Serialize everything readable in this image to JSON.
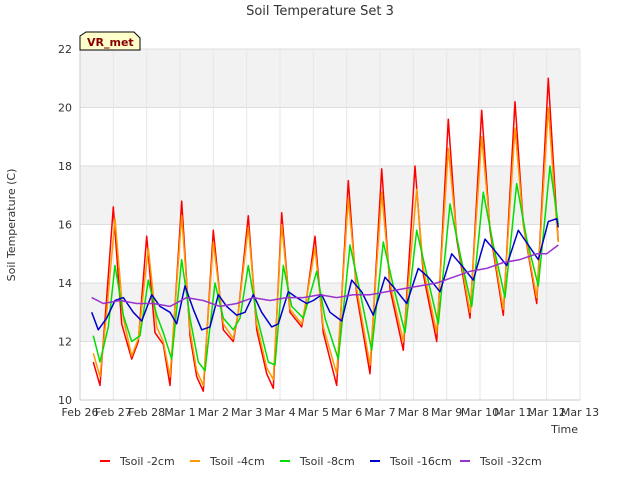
{
  "chart_data": {
    "type": "line",
    "title": "Soil Temperature Set 3",
    "xlabel": "Time",
    "ylabel": "Soil Temperature (C)",
    "ylim": [
      10,
      22
    ],
    "yticks": [
      10,
      12,
      14,
      16,
      18,
      20,
      22
    ],
    "xlim": [
      0,
      15
    ],
    "xticks": [
      {
        "x": 0,
        "label": "Feb 26"
      },
      {
        "x": 1,
        "label": "Feb 27"
      },
      {
        "x": 2,
        "label": "Feb 28"
      },
      {
        "x": 3,
        "label": "Mar 1"
      },
      {
        "x": 4,
        "label": "Mar 2"
      },
      {
        "x": 5,
        "label": "Mar 3"
      },
      {
        "x": 6,
        "label": "Mar 4"
      },
      {
        "x": 7,
        "label": "Mar 5"
      },
      {
        "x": 8,
        "label": "Mar 6"
      },
      {
        "x": 9,
        "label": "Mar 7"
      },
      {
        "x": 10,
        "label": "Mar 8"
      },
      {
        "x": 11,
        "label": "Mar 9"
      },
      {
        "x": 12,
        "label": "Mar 10"
      },
      {
        "x": 13,
        "label": "Mar 11"
      },
      {
        "x": 14,
        "label": "Mar 12"
      },
      {
        "x": 15,
        "label": "Mar 13"
      }
    ],
    "grid": true,
    "banded_background": true,
    "legend_position": "bottom",
    "annotation": "VR_met",
    "series": [
      {
        "name": "Tsoil -2cm",
        "color": "#ff0000",
        "points": [
          [
            0.4,
            11.3
          ],
          [
            0.6,
            10.5
          ],
          [
            0.8,
            13.5
          ],
          [
            1.0,
            16.6
          ],
          [
            1.25,
            12.6
          ],
          [
            1.55,
            11.4
          ],
          [
            1.75,
            12.0
          ],
          [
            2.0,
            15.6
          ],
          [
            2.25,
            12.3
          ],
          [
            2.5,
            11.9
          ],
          [
            2.7,
            10.5
          ],
          [
            3.05,
            16.8
          ],
          [
            3.3,
            12.2
          ],
          [
            3.5,
            10.8
          ],
          [
            3.7,
            10.3
          ],
          [
            4.0,
            15.8
          ],
          [
            4.3,
            12.4
          ],
          [
            4.6,
            12.0
          ],
          [
            4.75,
            13.0
          ],
          [
            5.05,
            16.3
          ],
          [
            5.3,
            12.4
          ],
          [
            5.6,
            10.9
          ],
          [
            5.8,
            10.4
          ],
          [
            6.05,
            16.4
          ],
          [
            6.3,
            13.0
          ],
          [
            6.65,
            12.5
          ],
          [
            6.8,
            13.5
          ],
          [
            7.05,
            15.6
          ],
          [
            7.3,
            12.3
          ],
          [
            7.7,
            10.5
          ],
          [
            8.05,
            17.5
          ],
          [
            8.3,
            13.6
          ],
          [
            8.7,
            10.9
          ],
          [
            9.05,
            17.9
          ],
          [
            9.3,
            13.8
          ],
          [
            9.7,
            11.7
          ],
          [
            10.05,
            18.0
          ],
          [
            10.3,
            14.3
          ],
          [
            10.7,
            12.0
          ],
          [
            11.05,
            19.6
          ],
          [
            11.3,
            15.5
          ],
          [
            11.7,
            12.8
          ],
          [
            12.05,
            19.9
          ],
          [
            12.3,
            15.8
          ],
          [
            12.7,
            12.9
          ],
          [
            13.05,
            20.2
          ],
          [
            13.3,
            16.0
          ],
          [
            13.7,
            13.3
          ],
          [
            14.05,
            21.0
          ],
          [
            14.3,
            16.2
          ],
          [
            14.35,
            15.4
          ]
        ]
      },
      {
        "name": "Tsoil -4cm",
        "color": "#ff9900",
        "points": [
          [
            0.4,
            11.6
          ],
          [
            0.6,
            10.8
          ],
          [
            0.8,
            13.0
          ],
          [
            1.05,
            16.2
          ],
          [
            1.3,
            12.8
          ],
          [
            1.55,
            11.5
          ],
          [
            1.75,
            12.1
          ],
          [
            2.05,
            15.2
          ],
          [
            2.3,
            12.5
          ],
          [
            2.5,
            12.0
          ],
          [
            2.7,
            10.8
          ],
          [
            3.05,
            16.3
          ],
          [
            3.3,
            12.4
          ],
          [
            3.5,
            11.0
          ],
          [
            3.7,
            10.5
          ],
          [
            4.0,
            15.4
          ],
          [
            4.3,
            12.6
          ],
          [
            4.6,
            12.1
          ],
          [
            4.75,
            13.0
          ],
          [
            5.05,
            15.9
          ],
          [
            5.3,
            12.6
          ],
          [
            5.6,
            11.1
          ],
          [
            5.8,
            10.7
          ],
          [
            6.05,
            16.0
          ],
          [
            6.3,
            13.1
          ],
          [
            6.65,
            12.6
          ],
          [
            6.8,
            13.5
          ],
          [
            7.05,
            15.2
          ],
          [
            7.3,
            12.5
          ],
          [
            7.7,
            10.9
          ],
          [
            8.05,
            16.9
          ],
          [
            8.3,
            13.8
          ],
          [
            8.7,
            11.2
          ],
          [
            9.05,
            17.1
          ],
          [
            9.3,
            14.0
          ],
          [
            9.7,
            12.0
          ],
          [
            10.1,
            17.2
          ],
          [
            10.3,
            14.5
          ],
          [
            10.7,
            12.3
          ],
          [
            11.05,
            18.6
          ],
          [
            11.3,
            15.6
          ],
          [
            11.7,
            13.0
          ],
          [
            12.05,
            19.0
          ],
          [
            12.3,
            15.9
          ],
          [
            12.7,
            13.1
          ],
          [
            13.05,
            19.3
          ],
          [
            13.3,
            16.0
          ],
          [
            13.7,
            13.5
          ],
          [
            14.05,
            20.0
          ],
          [
            14.3,
            16.0
          ],
          [
            14.35,
            15.4
          ]
        ]
      },
      {
        "name": "Tsoil -8cm",
        "color": "#00dd00",
        "points": [
          [
            0.4,
            12.2
          ],
          [
            0.6,
            11.3
          ],
          [
            0.85,
            12.5
          ],
          [
            1.05,
            14.6
          ],
          [
            1.3,
            12.9
          ],
          [
            1.55,
            12.0
          ],
          [
            1.8,
            12.2
          ],
          [
            2.05,
            14.1
          ],
          [
            2.3,
            12.9
          ],
          [
            2.5,
            12.3
          ],
          [
            2.75,
            11.4
          ],
          [
            3.05,
            14.8
          ],
          [
            3.3,
            12.8
          ],
          [
            3.55,
            11.3
          ],
          [
            3.75,
            11.0
          ],
          [
            4.05,
            14.0
          ],
          [
            4.3,
            12.8
          ],
          [
            4.6,
            12.4
          ],
          [
            4.8,
            12.8
          ],
          [
            5.05,
            14.6
          ],
          [
            5.3,
            12.9
          ],
          [
            5.65,
            11.3
          ],
          [
            5.85,
            11.2
          ],
          [
            6.1,
            14.6
          ],
          [
            6.35,
            13.2
          ],
          [
            6.7,
            12.8
          ],
          [
            6.85,
            13.4
          ],
          [
            7.1,
            14.4
          ],
          [
            7.35,
            12.8
          ],
          [
            7.75,
            11.4
          ],
          [
            8.1,
            15.3
          ],
          [
            8.4,
            13.7
          ],
          [
            8.75,
            11.7
          ],
          [
            9.1,
            15.4
          ],
          [
            9.4,
            13.9
          ],
          [
            9.75,
            12.3
          ],
          [
            10.1,
            15.8
          ],
          [
            10.4,
            14.3
          ],
          [
            10.75,
            12.6
          ],
          [
            11.1,
            16.7
          ],
          [
            11.4,
            15.0
          ],
          [
            11.75,
            13.2
          ],
          [
            12.1,
            17.1
          ],
          [
            12.4,
            15.3
          ],
          [
            12.75,
            13.5
          ],
          [
            13.1,
            17.4
          ],
          [
            13.4,
            15.5
          ],
          [
            13.75,
            13.9
          ],
          [
            14.1,
            18.0
          ],
          [
            14.35,
            16.0
          ]
        ]
      },
      {
        "name": "Tsoil -16cm",
        "color": "#0000cc",
        "points": [
          [
            0.35,
            13.0
          ],
          [
            0.55,
            12.4
          ],
          [
            0.8,
            12.8
          ],
          [
            1.05,
            13.4
          ],
          [
            1.3,
            13.5
          ],
          [
            1.6,
            13.0
          ],
          [
            1.85,
            12.7
          ],
          [
            2.15,
            13.6
          ],
          [
            2.4,
            13.2
          ],
          [
            2.7,
            13.0
          ],
          [
            2.9,
            12.6
          ],
          [
            3.15,
            13.9
          ],
          [
            3.4,
            13.1
          ],
          [
            3.65,
            12.4
          ],
          [
            3.9,
            12.5
          ],
          [
            4.15,
            13.6
          ],
          [
            4.4,
            13.2
          ],
          [
            4.7,
            12.9
          ],
          [
            4.95,
            13.0
          ],
          [
            5.2,
            13.6
          ],
          [
            5.45,
            13.0
          ],
          [
            5.75,
            12.5
          ],
          [
            5.95,
            12.6
          ],
          [
            6.25,
            13.7
          ],
          [
            6.5,
            13.5
          ],
          [
            6.8,
            13.3
          ],
          [
            7.0,
            13.4
          ],
          [
            7.25,
            13.6
          ],
          [
            7.5,
            13.0
          ],
          [
            7.85,
            12.7
          ],
          [
            8.15,
            14.1
          ],
          [
            8.45,
            13.7
          ],
          [
            8.8,
            12.9
          ],
          [
            9.15,
            14.2
          ],
          [
            9.45,
            13.8
          ],
          [
            9.8,
            13.3
          ],
          [
            10.15,
            14.5
          ],
          [
            10.45,
            14.2
          ],
          [
            10.8,
            13.7
          ],
          [
            11.15,
            15.0
          ],
          [
            11.45,
            14.6
          ],
          [
            11.8,
            14.1
          ],
          [
            12.15,
            15.5
          ],
          [
            12.45,
            15.1
          ],
          [
            12.8,
            14.6
          ],
          [
            13.15,
            15.8
          ],
          [
            13.45,
            15.3
          ],
          [
            13.75,
            14.8
          ],
          [
            14.05,
            16.1
          ],
          [
            14.3,
            16.2
          ],
          [
            14.35,
            15.9
          ]
        ]
      },
      {
        "name": "Tsoil -32cm",
        "color": "#9933cc",
        "points": [
          [
            0.35,
            13.5
          ],
          [
            0.7,
            13.3
          ],
          [
            1.2,
            13.4
          ],
          [
            1.7,
            13.3
          ],
          [
            2.2,
            13.3
          ],
          [
            2.7,
            13.2
          ],
          [
            3.2,
            13.5
          ],
          [
            3.7,
            13.4
          ],
          [
            4.2,
            13.2
          ],
          [
            4.7,
            13.3
          ],
          [
            5.2,
            13.5
          ],
          [
            5.7,
            13.4
          ],
          [
            6.2,
            13.5
          ],
          [
            6.7,
            13.5
          ],
          [
            7.2,
            13.6
          ],
          [
            7.7,
            13.5
          ],
          [
            8.2,
            13.6
          ],
          [
            8.7,
            13.6
          ],
          [
            9.2,
            13.7
          ],
          [
            9.7,
            13.8
          ],
          [
            10.2,
            13.9
          ],
          [
            10.7,
            14.0
          ],
          [
            11.2,
            14.2
          ],
          [
            11.7,
            14.4
          ],
          [
            12.2,
            14.5
          ],
          [
            12.7,
            14.7
          ],
          [
            13.2,
            14.8
          ],
          [
            13.7,
            15.0
          ],
          [
            14.0,
            15.0
          ],
          [
            14.35,
            15.3
          ]
        ]
      }
    ]
  }
}
